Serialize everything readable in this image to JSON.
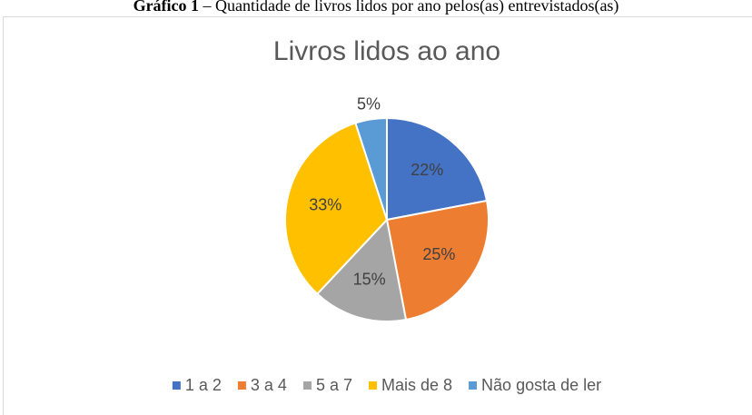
{
  "caption_label": "Gráfico 1",
  "caption": "– Quantidade de livros lidos por ano pelos(as) entrevistados(as)",
  "chart_data": {
    "type": "pie",
    "title": "Livros lidos ao ano",
    "categories": [
      "1 a 2",
      "3 a 4",
      "5 a 7",
      "Mais de 8",
      "Não gosta de ler"
    ],
    "values": [
      22,
      25,
      15,
      33,
      5
    ],
    "value_labels": [
      "22%",
      "25%",
      "15%",
      "33%",
      "5%"
    ],
    "colors": [
      "#4472c4",
      "#ed7d31",
      "#a5a5a5",
      "#ffc000",
      "#5b9bd5"
    ],
    "legend": "bottom"
  }
}
